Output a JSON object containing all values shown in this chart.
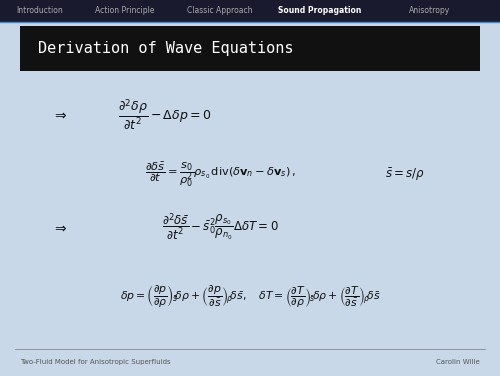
{
  "bg_color": "#c8d8e8",
  "header_bg": "#111111",
  "header_text_color": "#ffffff",
  "header_title": "Derivation of Wave Equations",
  "nav_bg": "#1a1a2e",
  "nav_items": [
    "Introduction",
    "Action Principle",
    "Classic Approach",
    "Sound Propagation",
    "Anisotropy"
  ],
  "nav_active": "Sound Propagation",
  "nav_text_color": "#aaaaaa",
  "nav_active_color": "#ffffff",
  "footer_left": "Two-Fluid Model for Anisotropic Superfluids",
  "footer_right": "Carolin Wille",
  "footer_color": "#555555",
  "math_color": "#111111",
  "nav_line_color": "#4488cc"
}
